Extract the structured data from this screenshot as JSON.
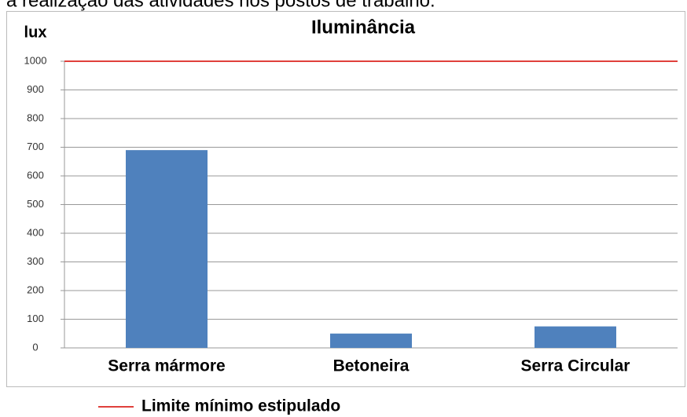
{
  "caption": "a realização das atividades nos postos de trabalho.",
  "chart_data": {
    "type": "bar",
    "title": "Iluminância",
    "y_label": "lux",
    "categories": [
      "Serra mármore",
      "Betoneira",
      "Serra Circular"
    ],
    "values": [
      690,
      50,
      75
    ],
    "color": "#4f81bd",
    "ylim": [
      0,
      1000
    ],
    "yticks": [
      0,
      100,
      200,
      300,
      400,
      500,
      600,
      700,
      800,
      900,
      1000
    ],
    "grid": true,
    "reference_line": {
      "value": 1000,
      "label": "Limite mínimo estipulado",
      "color": "#e0403c"
    }
  }
}
